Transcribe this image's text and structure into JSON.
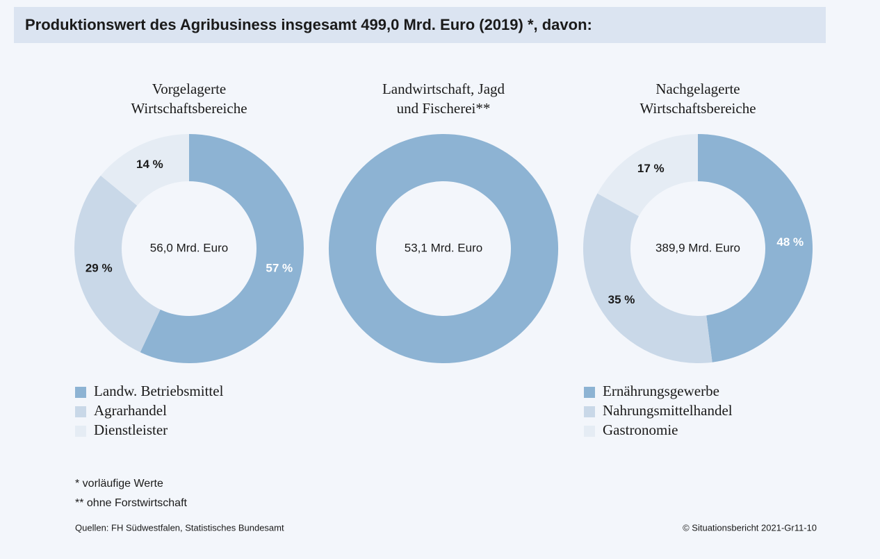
{
  "header": {
    "title": "Produktionswert des Agribusiness insgesamt 499,0 Mrd. Euro (2019) *, davon:"
  },
  "chart_data": [
    {
      "type": "donut",
      "title": [
        "Vorgelagerte",
        "Wirtschaftsbereiche"
      ],
      "center_label": "56,0 Mrd. Euro",
      "categories": [
        "Landw. Betriebsmittel",
        "Agrarhandel",
        "Dienstleister"
      ],
      "values": [
        57,
        29,
        14
      ],
      "value_labels": [
        "57 %",
        "29 %",
        "14 %"
      ],
      "colors": [
        "#8db3d3",
        "#c9d8e8",
        "#e5ecf4"
      ],
      "legend": true
    },
    {
      "type": "donut",
      "title": [
        "Landwirtschaft, Jagd",
        "und Fischerei**"
      ],
      "center_label": "53,1 Mrd. Euro",
      "categories": [
        null
      ],
      "values": [
        100
      ],
      "colors": [
        "#8db3d3"
      ],
      "legend": false
    },
    {
      "type": "donut",
      "title": [
        "Nachgelagerte",
        "Wirtschaftsbereiche"
      ],
      "center_label": "389,9 Mrd. Euro",
      "categories": [
        "Ernährungsgewerbe",
        "Nahrungsmittelhandel",
        "Gastronomie"
      ],
      "values": [
        48,
        35,
        17
      ],
      "value_labels": [
        "48 %",
        "35 %",
        "17 %"
      ],
      "colors": [
        "#8db3d3",
        "#c9d8e8",
        "#e5ecf4"
      ],
      "legend": true
    }
  ],
  "footer": {
    "notes": [
      "* vorläufige Werte",
      "** ohne Forstwirtschaft"
    ],
    "sources": "Quellen: FH Südwestfalen, Statistisches Bundesamt",
    "copyright": "© Situationsbericht 2021-Gr11-10"
  }
}
